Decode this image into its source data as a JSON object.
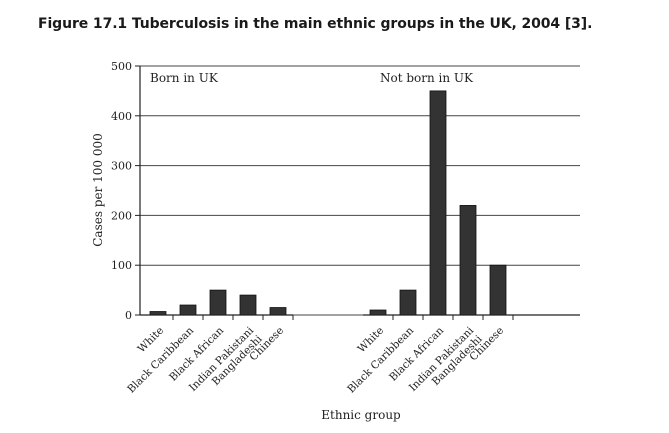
{
  "figure": {
    "title": "Figure 17.1  Tuberculosis in the main ethnic groups in the UK, 2004 [3]."
  },
  "chart_data": {
    "type": "bar",
    "title": "Figure 17.1  Tuberculosis in the main ethnic groups in the UK, 2004 [3].",
    "xlabel": "Ethnic group",
    "ylabel": "Cases per 100 000",
    "ylim": [
      0,
      500
    ],
    "yticks": [
      "0",
      "100",
      "200",
      "300",
      "400",
      "500"
    ],
    "grid": true,
    "bar_color": "#333333",
    "groups": [
      {
        "name": "Born in UK",
        "categories": [
          "White",
          "Black Caribbean",
          "Black African",
          "Indian Pakistani Bangladeshi",
          "Chinese"
        ],
        "category_lines": [
          [
            "White"
          ],
          [
            "Black Caribbean"
          ],
          [
            "Black African"
          ],
          [
            "Indian Pakistani",
            "Bangladeshi"
          ],
          [
            "Chinese"
          ]
        ],
        "values": [
          7,
          20,
          50,
          40,
          15
        ]
      },
      {
        "name": "Not born in UK",
        "categories": [
          "White",
          "Black Caribbean",
          "Black African",
          "Indian Pakistani Bangladeshi",
          "Chinese"
        ],
        "category_lines": [
          [
            "White"
          ],
          [
            "Black Caribbean"
          ],
          [
            "Black African"
          ],
          [
            "Indian Pakistani",
            "Bangladeshi"
          ],
          [
            "Chinese"
          ]
        ],
        "values": [
          10,
          50,
          450,
          220,
          100
        ]
      }
    ]
  }
}
